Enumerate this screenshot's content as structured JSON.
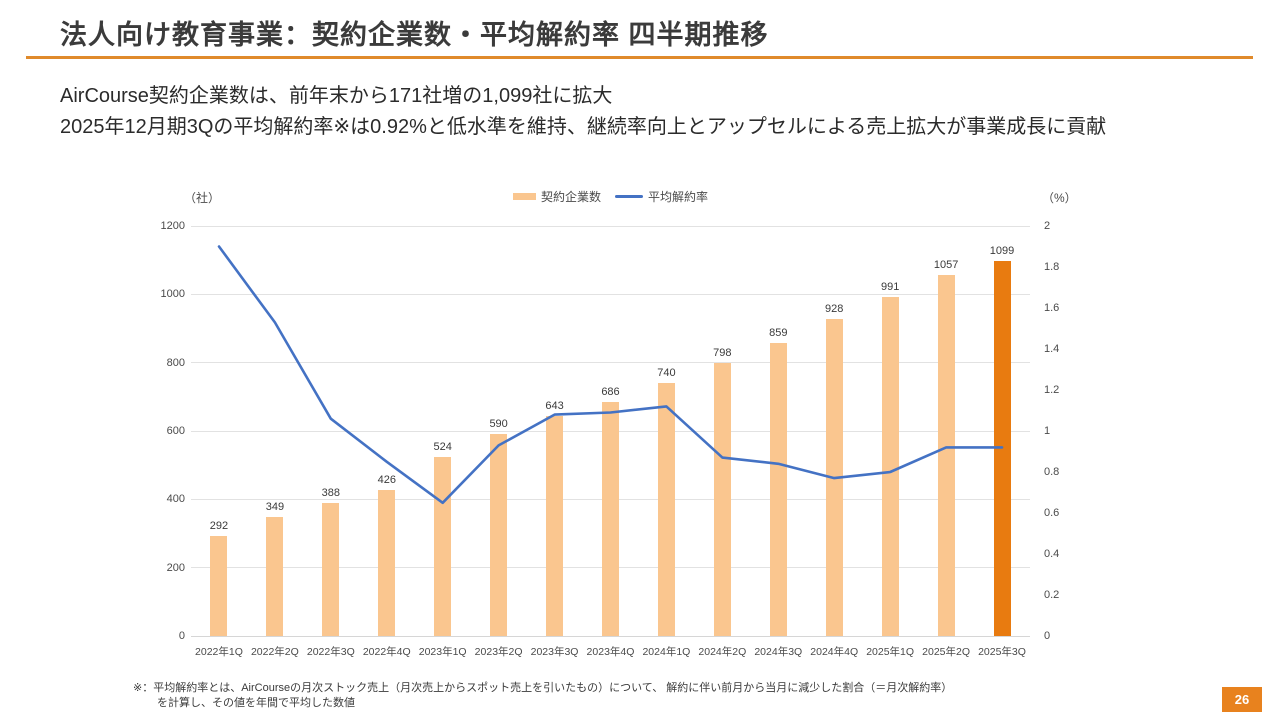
{
  "header": {
    "title": "法人向け教育事業：契約企業数・平均解約率 四半期推移",
    "subtitle_line1": "AirCourse契約企業数は、前年末から171社増の1,099社に拡大",
    "subtitle_line2": "2025年12月期3Qの平均解約率※は0.92%と低水準を維持、継続率向上とアップセルによる売上拡大が事業成長に貢献"
  },
  "chart_data": {
    "type": "bar",
    "subtype": "combo-bar-line",
    "title": "",
    "categories": [
      "2022年1Q",
      "2022年2Q",
      "2022年3Q",
      "2022年4Q",
      "2023年1Q",
      "2023年2Q",
      "2023年3Q",
      "2023年4Q",
      "2024年1Q",
      "2024年2Q",
      "2024年3Q",
      "2024年4Q",
      "2025年1Q",
      "2025年2Q",
      "2025年3Q"
    ],
    "series": [
      {
        "name": "契約企業数",
        "type": "bar",
        "axis": "left",
        "values": [
          292,
          349,
          388,
          426,
          524,
          590,
          643,
          686,
          740,
          798,
          859,
          928,
          991,
          1057,
          1099
        ],
        "highlight_index": 14
      },
      {
        "name": "平均解約率",
        "type": "line",
        "axis": "right",
        "values": [
          1.9,
          1.53,
          1.06,
          0.85,
          0.65,
          0.93,
          1.08,
          1.09,
          1.12,
          0.87,
          0.84,
          0.77,
          0.8,
          0.92,
          0.92
        ]
      }
    ],
    "left_axis": {
      "unit": "（社）",
      "min": 0,
      "max": 1200,
      "ticks": [
        1200,
        1000,
        800,
        600,
        400,
        200,
        0
      ]
    },
    "right_axis": {
      "unit": "（%）",
      "min": 0,
      "max": 2,
      "ticks": [
        2,
        1.8,
        1.6,
        1.4,
        1.2,
        1,
        0.8,
        0.6,
        0.4,
        0.2,
        0
      ]
    },
    "grid": true,
    "legend_position": "top-center"
  },
  "footnote": {
    "line1": "※：平均解約率とは、AirCourseの月次ストック売上（月次売上からスポット売上を引いたもの）について、 解約に伴い前月から当月に減少した割合（＝月次解約率）",
    "line2": "を計算し、その値を年間で平均した数値"
  },
  "footer": {
    "page_number": "26"
  },
  "colors": {
    "bar_fill": "#FAC68F",
    "bar_highlight": "#E87B10",
    "line": "#4472C4",
    "accent_rule": "#E08A2B",
    "badge_bg": "#E8821E",
    "grid": "#E2E2E2",
    "axis_line": "#D6D6D6",
    "text_dark": "#333333",
    "text_axis": "#4A4A4A"
  }
}
